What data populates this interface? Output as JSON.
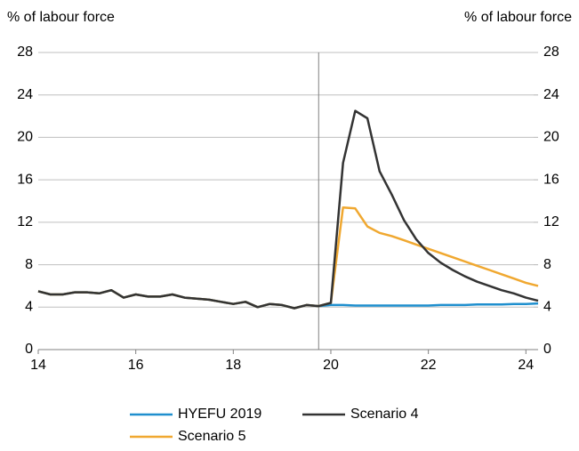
{
  "chart_data": {
    "type": "line",
    "y_label": "% of labour force",
    "y2_label": "% of labour force",
    "x": [
      14,
      14.25,
      14.5,
      14.75,
      15,
      15.25,
      15.5,
      15.75,
      16,
      16.25,
      16.5,
      16.75,
      17,
      17.25,
      17.5,
      17.75,
      18,
      18.25,
      18.5,
      18.75,
      19,
      19.25,
      19.5,
      19.75,
      20,
      20.25,
      20.5,
      20.75,
      21,
      21.25,
      21.5,
      21.75,
      22,
      22.25,
      22.5,
      22.75,
      23,
      23.25,
      23.5,
      23.75,
      24,
      24.25
    ],
    "series": [
      {
        "name": "HYEFU 2019",
        "color": "#1f8fce",
        "values": [
          5.5,
          5.2,
          5.2,
          5.4,
          5.4,
          5.3,
          5.6,
          4.9,
          5.2,
          5.0,
          5.0,
          5.2,
          4.9,
          4.8,
          4.7,
          4.5,
          4.3,
          4.5,
          4.0,
          4.3,
          4.2,
          3.9,
          4.2,
          4.1,
          4.2,
          4.2,
          4.15,
          4.15,
          4.15,
          4.15,
          4.15,
          4.15,
          4.15,
          4.2,
          4.2,
          4.2,
          4.25,
          4.25,
          4.25,
          4.3,
          4.3,
          4.35
        ]
      },
      {
        "name": "Scenario 4",
        "color": "#333333",
        "values": [
          5.5,
          5.2,
          5.2,
          5.4,
          5.4,
          5.3,
          5.6,
          4.9,
          5.2,
          5.0,
          5.0,
          5.2,
          4.9,
          4.8,
          4.7,
          4.5,
          4.3,
          4.5,
          4.0,
          4.3,
          4.2,
          3.9,
          4.2,
          4.1,
          4.4,
          17.6,
          22.5,
          21.8,
          16.8,
          14.6,
          12.2,
          10.4,
          9.1,
          8.2,
          7.5,
          6.9,
          6.4,
          6.0,
          5.6,
          5.3,
          4.9,
          4.6
        ]
      },
      {
        "name": "Scenario 5",
        "color": "#f0a830",
        "values": [
          5.5,
          5.2,
          5.2,
          5.4,
          5.4,
          5.3,
          5.6,
          4.9,
          5.2,
          5.0,
          5.0,
          5.2,
          4.9,
          4.8,
          4.7,
          4.5,
          4.3,
          4.5,
          4.0,
          4.3,
          4.2,
          3.9,
          4.2,
          4.1,
          4.4,
          13.4,
          13.3,
          11.6,
          11.0,
          10.7,
          10.3,
          9.9,
          9.5,
          9.1,
          8.7,
          8.3,
          7.9,
          7.5,
          7.1,
          6.7,
          6.3,
          6.0
        ]
      }
    ],
    "xlim": [
      14,
      24.25
    ],
    "xticks": [
      14,
      16,
      18,
      20,
      22,
      24
    ],
    "ylim": [
      0,
      28
    ],
    "yticks": [
      0,
      4,
      8,
      12,
      16,
      20,
      24,
      28
    ],
    "y2lim": [
      0,
      28
    ],
    "y2ticks": [
      0,
      4,
      8,
      12,
      16,
      20,
      24,
      28
    ],
    "vline": 19.75,
    "grid": true
  }
}
